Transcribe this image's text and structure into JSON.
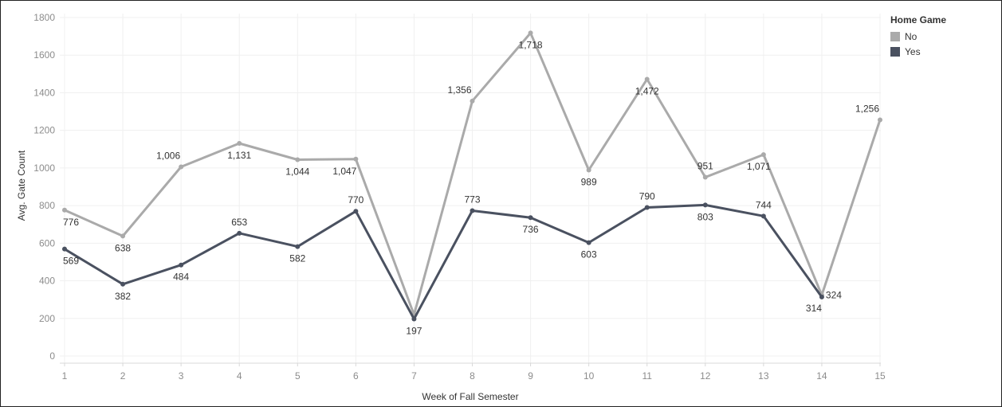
{
  "chart_data": {
    "type": "line",
    "title": "",
    "xlabel": "Week of Fall Semester",
    "ylabel": "Avg. Gate Count",
    "x": [
      1,
      2,
      3,
      4,
      5,
      6,
      7,
      8,
      9,
      10,
      11,
      12,
      13,
      14,
      15
    ],
    "ylim": [
      0,
      1800
    ],
    "yticks": [
      0,
      200,
      400,
      600,
      800,
      1000,
      1200,
      1400,
      1600,
      1800
    ],
    "grid": true,
    "legend": {
      "title": "Home Game",
      "placement": "top-right"
    },
    "series": [
      {
        "name": "No",
        "color": "#aaaaaa",
        "values": [
          776,
          638,
          1006,
          1131,
          1044,
          1047,
          220,
          1356,
          1718,
          989,
          1472,
          951,
          1071,
          324,
          1256
        ],
        "labels": [
          "776",
          "638",
          "1,006",
          "1,131",
          "1,044",
          "1,047",
          "",
          "1,356",
          "1,718",
          "989",
          "1,472",
          "951",
          "1,071",
          "324",
          "1,256"
        ]
      },
      {
        "name": "Yes",
        "color": "#4a5160",
        "values": [
          569,
          382,
          484,
          653,
          582,
          770,
          197,
          773,
          736,
          603,
          790,
          803,
          744,
          314,
          null
        ],
        "labels": [
          "569",
          "382",
          "484",
          "653",
          "582",
          "770",
          "197",
          "773",
          "736",
          "603",
          "790",
          "803",
          "744",
          "314",
          ""
        ]
      }
    ]
  }
}
